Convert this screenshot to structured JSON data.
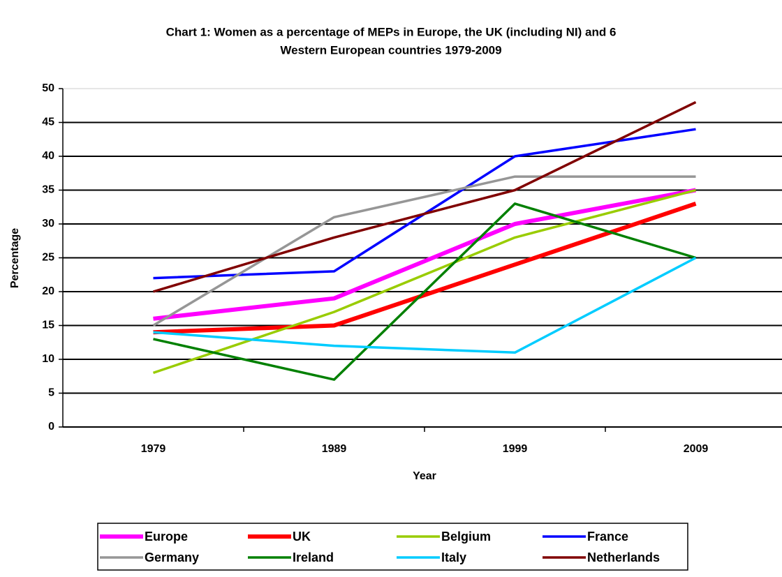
{
  "chart_data": {
    "type": "line",
    "title": [
      "Chart 1: Women as a percentage of MEPs in Europe, the UK (including NI) and 6",
      "Western European countries 1979-2009"
    ],
    "x_label": "Year",
    "y_label": "Percentage",
    "categories": [
      "1979",
      "1989",
      "1999",
      "2009"
    ],
    "series": [
      {
        "name": "Europe",
        "color": "#ff00ff",
        "values": [
          16,
          19,
          30,
          35
        ]
      },
      {
        "name": "UK",
        "color": "#ff0000",
        "values": [
          14,
          15,
          24,
          33
        ]
      },
      {
        "name": "Belgium",
        "color": "#99cc00",
        "values": [
          8,
          17,
          28,
          35
        ]
      },
      {
        "name": "France",
        "color": "#0000ff",
        "values": [
          22,
          23,
          40,
          44
        ]
      },
      {
        "name": "Germany",
        "color": "#969696",
        "values": [
          15,
          31,
          37,
          37
        ]
      },
      {
        "name": "Ireland",
        "color": "#008000",
        "values": [
          13,
          7,
          33,
          25
        ]
      },
      {
        "name": "Italy",
        "color": "#00ccff",
        "values": [
          14,
          12,
          11,
          25
        ]
      },
      {
        "name": "Netherlands",
        "color": "#800000",
        "values": [
          20,
          28,
          35,
          48
        ]
      }
    ],
    "ylim": [
      0,
      50
    ],
    "yticks": [
      0,
      5,
      10,
      15,
      20,
      25,
      30,
      35,
      40,
      45,
      50
    ],
    "grid": true
  }
}
